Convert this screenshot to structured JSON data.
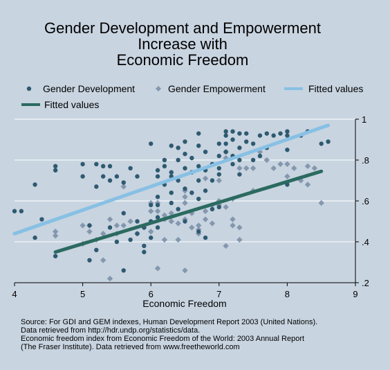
{
  "colors": {
    "background": "#c8d4e0",
    "development_marker": "#2e5a70",
    "empowerment_marker": "#8497ae",
    "development_fit": "#2b6a60",
    "empowerment_fit": "#87c0e4",
    "grid": "#ffffff"
  },
  "chart_data": {
    "type": "scatter",
    "title": [
      "Gender Development and Empowerment",
      "Increase with",
      "Economic Freedom"
    ],
    "xlabel": "Economic Freedom",
    "ylabel": "",
    "xlim": [
      4,
      9
    ],
    "ylim": [
      0.2,
      1
    ],
    "x_ticks": [
      "4",
      "5",
      "6",
      "7",
      "8",
      "9"
    ],
    "y_ticks": [
      ".2",
      ".4",
      ".6",
      ".8",
      "1"
    ],
    "y_tick_values": [
      0.2,
      0.4,
      0.6,
      0.8,
      1.0
    ],
    "grid": "horizontal",
    "legend_position": "top",
    "legend": [
      "Gender Development",
      "Gender Empowerment",
      "Fitted values",
      "Fitted values"
    ],
    "series": [
      {
        "name": "Gender Development",
        "kind": "points",
        "marker": "circle",
        "points": [
          [
            4.0,
            0.55
          ],
          [
            4.1,
            0.55
          ],
          [
            4.3,
            0.42
          ],
          [
            4.3,
            0.68
          ],
          [
            4.4,
            0.51
          ],
          [
            4.6,
            0.33
          ],
          [
            4.6,
            0.75
          ],
          [
            4.6,
            0.77
          ],
          [
            5.0,
            0.72
          ],
          [
            5.0,
            0.78
          ],
          [
            5.1,
            0.48
          ],
          [
            5.1,
            0.31
          ],
          [
            5.2,
            0.78
          ],
          [
            5.2,
            0.36
          ],
          [
            5.2,
            0.67
          ],
          [
            5.3,
            0.77
          ],
          [
            5.3,
            0.72
          ],
          [
            5.4,
            0.47
          ],
          [
            5.4,
            0.7
          ],
          [
            5.4,
            0.77
          ],
          [
            5.5,
            0.4
          ],
          [
            5.5,
            0.72
          ],
          [
            5.6,
            0.26
          ],
          [
            5.6,
            0.54
          ],
          [
            5.6,
            0.69
          ],
          [
            5.7,
            0.41
          ],
          [
            5.7,
            0.76
          ],
          [
            5.8,
            0.44
          ],
          [
            5.8,
            0.72
          ],
          [
            5.8,
            0.5
          ],
          [
            5.9,
            0.35
          ],
          [
            5.9,
            0.38
          ],
          [
            5.9,
            0.47
          ],
          [
            6.0,
            0.42
          ],
          [
            6.0,
            0.5
          ],
          [
            6.0,
            0.58
          ],
          [
            6.0,
            0.88
          ],
          [
            6.1,
            0.47
          ],
          [
            6.1,
            0.52
          ],
          [
            6.1,
            0.58
          ],
          [
            6.1,
            0.62
          ],
          [
            6.1,
            0.72
          ],
          [
            6.1,
            0.75
          ],
          [
            6.2,
            0.68
          ],
          [
            6.2,
            0.77
          ],
          [
            6.2,
            0.8
          ],
          [
            6.3,
            0.59
          ],
          [
            6.3,
            0.64
          ],
          [
            6.3,
            0.72
          ],
          [
            6.3,
            0.74
          ],
          [
            6.3,
            0.87
          ],
          [
            6.4,
            0.56
          ],
          [
            6.4,
            0.7
          ],
          [
            6.4,
            0.8
          ],
          [
            6.4,
            0.86
          ],
          [
            6.5,
            0.5
          ],
          [
            6.5,
            0.66
          ],
          [
            6.5,
            0.76
          ],
          [
            6.5,
            0.83
          ],
          [
            6.5,
            0.89
          ],
          [
            6.6,
            0.64
          ],
          [
            6.6,
            0.74
          ],
          [
            6.6,
            0.81
          ],
          [
            6.7,
            0.45
          ],
          [
            6.7,
            0.61
          ],
          [
            6.7,
            0.7
          ],
          [
            6.7,
            0.77
          ],
          [
            6.7,
            0.87
          ],
          [
            6.7,
            0.93
          ],
          [
            6.8,
            0.42
          ],
          [
            6.8,
            0.65
          ],
          [
            6.8,
            0.75
          ],
          [
            6.8,
            0.84
          ],
          [
            6.9,
            0.56
          ],
          [
            6.9,
            0.7
          ],
          [
            6.9,
            0.78
          ],
          [
            7.0,
            0.57
          ],
          [
            7.0,
            0.73
          ],
          [
            7.0,
            0.76
          ],
          [
            7.0,
            0.82
          ],
          [
            7.0,
            0.88
          ],
          [
            7.1,
            0.84
          ],
          [
            7.1,
            0.88
          ],
          [
            7.1,
            0.92
          ],
          [
            7.1,
            0.94
          ],
          [
            7.2,
            0.78
          ],
          [
            7.2,
            0.82
          ],
          [
            7.2,
            0.9
          ],
          [
            7.2,
            0.94
          ],
          [
            7.3,
            0.73
          ],
          [
            7.3,
            0.8
          ],
          [
            7.3,
            0.86
          ],
          [
            7.3,
            0.93
          ],
          [
            7.4,
            0.89
          ],
          [
            7.4,
            0.93
          ],
          [
            7.5,
            0.8
          ],
          [
            7.5,
            0.88
          ],
          [
            7.6,
            0.82
          ],
          [
            7.6,
            0.92
          ],
          [
            7.7,
            0.86
          ],
          [
            7.7,
            0.93
          ],
          [
            7.8,
            0.92
          ],
          [
            7.9,
            0.93
          ],
          [
            8.0,
            0.68
          ],
          [
            8.0,
            0.85
          ],
          [
            8.0,
            0.92
          ],
          [
            8.0,
            0.94
          ],
          [
            8.2,
            0.92
          ],
          [
            8.3,
            0.94
          ],
          [
            8.5,
            0.88
          ],
          [
            8.6,
            0.89
          ]
        ]
      },
      {
        "name": "Gender Empowerment",
        "kind": "points",
        "marker": "diamond",
        "points": [
          [
            4.6,
            0.43
          ],
          [
            4.6,
            0.45
          ],
          [
            5.0,
            0.39
          ],
          [
            5.0,
            0.48
          ],
          [
            5.1,
            0.45
          ],
          [
            5.1,
            0.48
          ],
          [
            5.2,
            0.41
          ],
          [
            5.3,
            0.31
          ],
          [
            5.3,
            0.44
          ],
          [
            5.4,
            0.22
          ],
          [
            5.4,
            0.51
          ],
          [
            5.5,
            0.44
          ],
          [
            5.5,
            0.48
          ],
          [
            5.6,
            0.48
          ],
          [
            5.6,
            0.67
          ],
          [
            5.7,
            0.5
          ],
          [
            5.8,
            0.44
          ],
          [
            5.9,
            0.47
          ],
          [
            6.0,
            0.45
          ],
          [
            6.0,
            0.55
          ],
          [
            6.0,
            0.59
          ],
          [
            6.1,
            0.27
          ],
          [
            6.1,
            0.55
          ],
          [
            6.1,
            0.59
          ],
          [
            6.2,
            0.41
          ],
          [
            6.2,
            0.51
          ],
          [
            6.2,
            0.53
          ],
          [
            6.3,
            0.5
          ],
          [
            6.3,
            0.54
          ],
          [
            6.4,
            0.41
          ],
          [
            6.4,
            0.49
          ],
          [
            6.5,
            0.26
          ],
          [
            6.5,
            0.51
          ],
          [
            6.5,
            0.59
          ],
          [
            6.5,
            0.62
          ],
          [
            6.5,
            0.65
          ],
          [
            6.6,
            0.47
          ],
          [
            6.6,
            0.54
          ],
          [
            6.7,
            0.44
          ],
          [
            6.7,
            0.46
          ],
          [
            6.7,
            0.48
          ],
          [
            6.8,
            0.51
          ],
          [
            6.8,
            0.55
          ],
          [
            6.8,
            0.71
          ],
          [
            6.9,
            0.49
          ],
          [
            6.9,
            0.58
          ],
          [
            7.0,
            0.58
          ],
          [
            7.0,
            0.6
          ],
          [
            7.0,
            0.7
          ],
          [
            7.1,
            0.38
          ],
          [
            7.1,
            0.57
          ],
          [
            7.1,
            0.81
          ],
          [
            7.1,
            0.84
          ],
          [
            7.2,
            0.48
          ],
          [
            7.2,
            0.51
          ],
          [
            7.2,
            0.61
          ],
          [
            7.3,
            0.41
          ],
          [
            7.3,
            0.47
          ],
          [
            7.3,
            0.76
          ],
          [
            7.4,
            0.76
          ],
          [
            7.5,
            0.65
          ],
          [
            7.5,
            0.76
          ],
          [
            7.6,
            0.84
          ],
          [
            7.7,
            0.8
          ],
          [
            7.8,
            0.76
          ],
          [
            7.9,
            0.78
          ],
          [
            8.0,
            0.72
          ],
          [
            8.0,
            0.78
          ],
          [
            8.1,
            0.76
          ],
          [
            8.2,
            0.7
          ],
          [
            8.3,
            0.77
          ],
          [
            8.3,
            0.68
          ],
          [
            8.4,
            0.76
          ],
          [
            8.5,
            0.59
          ]
        ]
      },
      {
        "name": "Fitted values",
        "kind": "line",
        "x": [
          4.0,
          8.6
        ],
        "y": [
          0.44,
          0.97
        ]
      },
      {
        "name": "Fitted values",
        "kind": "line",
        "x": [
          4.6,
          8.5
        ],
        "y": [
          0.35,
          0.745
        ]
      }
    ]
  },
  "source_note": [
    "Source: For GDI and GEM indexes, Human Development Report  2003 (United Nations).",
    "Data retrieved from http://hdr.undp.org/statistics/data.",
    "Economic freedom index from Economic Freedom of the World: 2003 Annual Report",
    "(The Fraser Institute).  Data retrieved from www.freetheworld.com"
  ]
}
